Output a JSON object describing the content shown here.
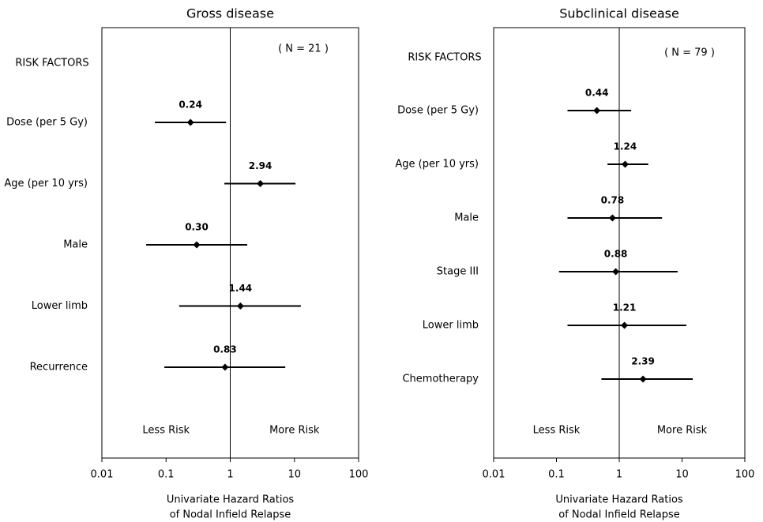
{
  "chart_data": [
    {
      "type": "forest",
      "title": "Gross disease",
      "annotation": "( N = 21 )",
      "header": "RISK FACTORS",
      "categories": [
        "Dose (per 5 Gy)",
        "Age (per 10 yrs)",
        "Male",
        "Lower limb",
        "Recurrence"
      ],
      "values": [
        0.24,
        2.94,
        0.3,
        1.44,
        0.83
      ],
      "value_labels": [
        "0.24",
        "2.94",
        "0.30",
        "1.44",
        "0.83"
      ],
      "ci_low": [
        0.067,
        0.81,
        0.049,
        0.16,
        0.094
      ],
      "ci_high": [
        0.86,
        10.4,
        1.84,
        12.6,
        7.2
      ],
      "reference": 1,
      "less_label": "Less Risk",
      "more_label": "More Risk",
      "xlim": [
        0.01,
        100
      ],
      "xticks": [
        0.01,
        0.1,
        1,
        10,
        100
      ],
      "xscale": "log",
      "xlabel": [
        "Univariate Hazard Ratios",
        "of Nodal Infield Relapse"
      ],
      "color": "#000000"
    },
    {
      "type": "forest",
      "title": "Subclinical disease",
      "annotation": "( N = 79 )",
      "header": "RISK FACTORS",
      "categories": [
        "Dose (per 5 Gy)",
        "Age (per 10 yrs)",
        "Male",
        "Stage III",
        "Lower limb",
        "Chemotherapy"
      ],
      "values": [
        0.44,
        1.24,
        0.78,
        0.88,
        1.21,
        2.39
      ],
      "value_labels": [
        "0.44",
        "1.24",
        "0.78",
        "0.88",
        "1.21",
        "2.39"
      ],
      "ci_low": [
        0.15,
        0.65,
        0.15,
        0.11,
        0.15,
        0.52
      ],
      "ci_high": [
        1.55,
        2.9,
        4.8,
        8.5,
        11.7,
        14.8
      ],
      "reference": 1,
      "less_label": "Less Risk",
      "more_label": "More Risk",
      "xlim": [
        0.01,
        100
      ],
      "xticks": [
        0.01,
        0.1,
        1,
        10,
        100
      ],
      "xscale": "log",
      "xlabel": [
        "Univariate Hazard Ratios",
        "of Nodal Infield Relapse"
      ],
      "color": "#000000"
    }
  ]
}
